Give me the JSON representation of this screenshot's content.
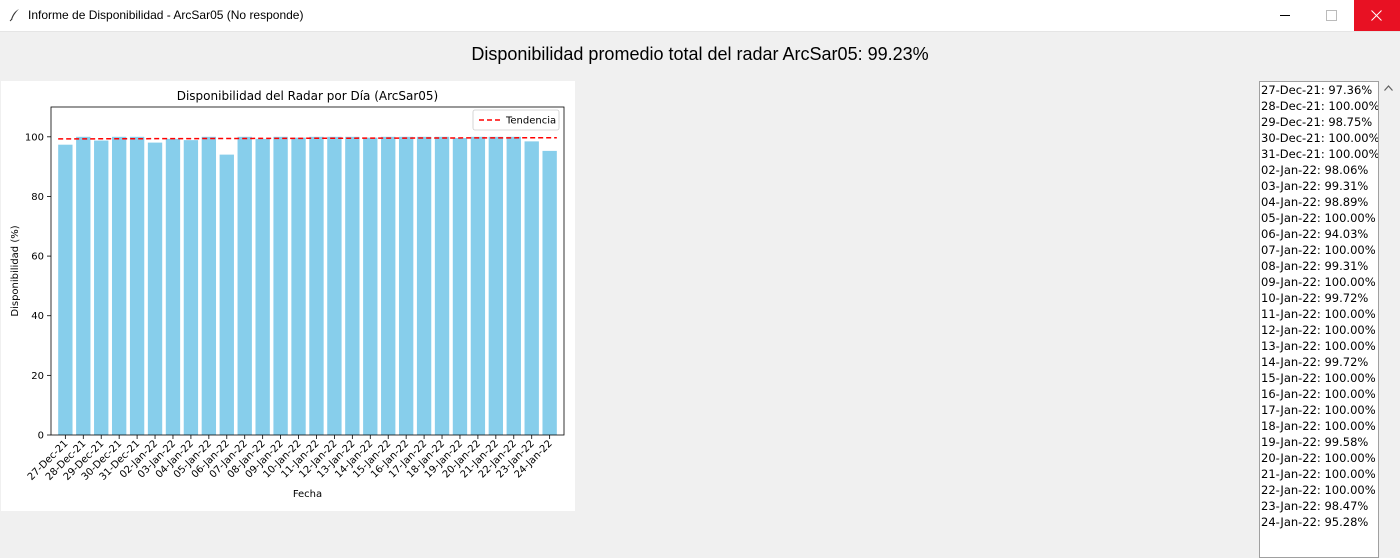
{
  "window": {
    "title": "Informe de Disponibilidad - ArcSar05 (No responde)",
    "icon": "feather-icon",
    "controls": {
      "minimize": "minimize-icon",
      "maximize": "maximize-icon",
      "close": "close-icon",
      "close_color": "#e81123"
    }
  },
  "header": {
    "text": "Disponibilidad promedio total del radar ArcSar05: 99.23%"
  },
  "chart_data": {
    "type": "bar",
    "title": "Disponibilidad del Radar por Día (ArcSar05)",
    "xlabel": "Fecha",
    "ylabel": "Disponibilidad (%)",
    "ylim": [
      0,
      110
    ],
    "yticks": [
      0,
      20,
      40,
      60,
      80,
      100
    ],
    "categories": [
      "27-Dec-21",
      "28-Dec-21",
      "29-Dec-21",
      "30-Dec-21",
      "31-Dec-21",
      "02-Jan-22",
      "03-Jan-22",
      "04-Jan-22",
      "05-Jan-22",
      "06-Jan-22",
      "07-Jan-22",
      "08-Jan-22",
      "09-Jan-22",
      "10-Jan-22",
      "11-Jan-22",
      "12-Jan-22",
      "13-Jan-22",
      "14-Jan-22",
      "15-Jan-22",
      "16-Jan-22",
      "17-Jan-22",
      "18-Jan-22",
      "19-Jan-22",
      "20-Jan-22",
      "21-Jan-22",
      "22-Jan-22",
      "23-Jan-22",
      "24-Jan-22"
    ],
    "values": [
      97.36,
      100.0,
      98.75,
      100.0,
      100.0,
      98.06,
      99.31,
      98.89,
      100.0,
      94.03,
      100.0,
      99.31,
      100.0,
      99.72,
      100.0,
      100.0,
      100.0,
      99.72,
      100.0,
      100.0,
      100.0,
      100.0,
      99.58,
      100.0,
      100.0,
      100.0,
      98.47,
      95.28
    ],
    "bar_color": "#87ceeb",
    "trend": {
      "name": "Tendencia",
      "start": 99.3,
      "end": 99.7,
      "color": "#ff0000",
      "style": "dashed"
    },
    "legend_position": "top-right",
    "grid": false
  },
  "list": {
    "items": [
      "27-Dec-21: 97.36%",
      "28-Dec-21: 100.00%",
      "29-Dec-21: 98.75%",
      "30-Dec-21: 100.00%",
      "31-Dec-21: 100.00%",
      "02-Jan-22: 98.06%",
      "03-Jan-22: 99.31%",
      "04-Jan-22: 98.89%",
      "05-Jan-22: 100.00%",
      "06-Jan-22: 94.03%",
      "07-Jan-22: 100.00%",
      "08-Jan-22: 99.31%",
      "09-Jan-22: 100.00%",
      "10-Jan-22: 99.72%",
      "11-Jan-22: 100.00%",
      "12-Jan-22: 100.00%",
      "13-Jan-22: 100.00%",
      "14-Jan-22: 99.72%",
      "15-Jan-22: 100.00%",
      "16-Jan-22: 100.00%",
      "17-Jan-22: 100.00%",
      "18-Jan-22: 100.00%",
      "19-Jan-22: 99.58%",
      "20-Jan-22: 100.00%",
      "21-Jan-22: 100.00%",
      "22-Jan-22: 100.00%",
      "23-Jan-22: 98.47%",
      "24-Jan-22: 95.28%"
    ],
    "scroll_icon": "scroll-up-arrow-icon"
  }
}
